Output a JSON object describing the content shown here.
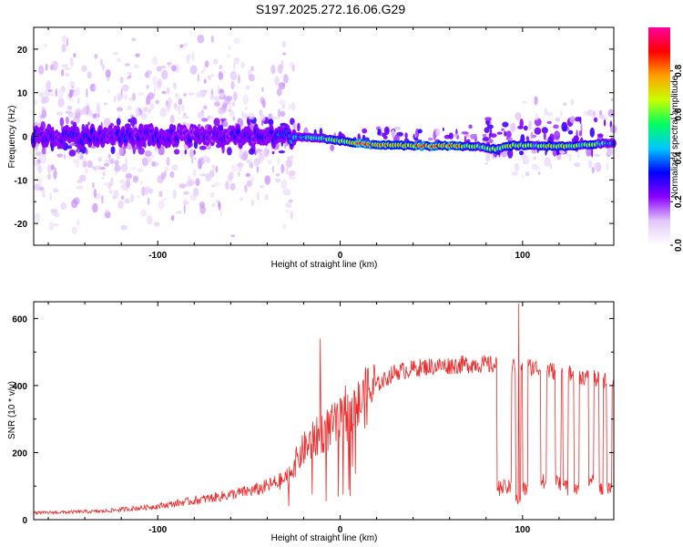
{
  "title": "S197.2025.272.16.06.G29",
  "chart_data": [
    {
      "type": "heatmap",
      "name": "spectrogram",
      "xlabel": "Height of straight line (km)",
      "ylabel": "Frequency (Hz)",
      "xlim": [
        -168,
        150
      ],
      "ylim": [
        -25,
        25
      ],
      "xticks": [
        -100,
        0,
        100
      ],
      "yticks": [
        -20,
        -10,
        0,
        10,
        20
      ],
      "colorbar": {
        "label": "Normalized spectral amplitude",
        "range": [
          0,
          1
        ],
        "ticks": [
          "0.0",
          "0.2",
          "0.4",
          "0.6",
          "0.8"
        ],
        "tick_values": [
          0,
          0.2,
          0.4,
          0.6,
          0.8
        ],
        "colors": [
          "#ffffff",
          "#e3c8f8",
          "#8a00ff",
          "#0000ff",
          "#00c8ff",
          "#00ff60",
          "#c8ff00",
          "#ffa000",
          "#ff0000",
          "#ff00a0"
        ]
      },
      "ridge": [
        {
          "x": -168,
          "f": 0.0,
          "a": 0.35
        },
        {
          "x": -120,
          "f": 0.0,
          "a": 0.35
        },
        {
          "x": -80,
          "f": 0.0,
          "a": 0.3
        },
        {
          "x": -40,
          "f": 0.0,
          "a": 0.35
        },
        {
          "x": -28,
          "f": 0.0,
          "a": 0.45
        },
        {
          "x": -15,
          "f": -0.3,
          "a": 0.6
        },
        {
          "x": 0,
          "f": -1.0,
          "a": 0.7
        },
        {
          "x": 10,
          "f": -1.7,
          "a": 0.95
        },
        {
          "x": 25,
          "f": -2.0,
          "a": 0.8
        },
        {
          "x": 40,
          "f": -2.2,
          "a": 0.9
        },
        {
          "x": 60,
          "f": -2.2,
          "a": 0.95
        },
        {
          "x": 75,
          "f": -2.3,
          "a": 0.7
        },
        {
          "x": 85,
          "f": -3.0,
          "a": 0.7
        },
        {
          "x": 95,
          "f": -2.0,
          "a": 0.75
        },
        {
          "x": 110,
          "f": -2.2,
          "a": 0.7
        },
        {
          "x": 125,
          "f": -2.3,
          "a": 0.75
        },
        {
          "x": 140,
          "f": -1.8,
          "a": 0.7
        },
        {
          "x": 150,
          "f": -1.5,
          "a": 0.5
        }
      ]
    },
    {
      "type": "line",
      "name": "snr",
      "xlabel": "Height of straight line (km)",
      "ylabel": "SNR (10 * v/v)",
      "xlim": [
        -168,
        150
      ],
      "ylim": [
        0,
        650
      ],
      "xticks": [
        -100,
        0,
        100
      ],
      "yticks": [
        0,
        200,
        400,
        600
      ],
      "color": "#ee2a2a",
      "envelope": [
        {
          "x": -168,
          "y": 20
        },
        {
          "x": -130,
          "y": 25
        },
        {
          "x": -100,
          "y": 40
        },
        {
          "x": -70,
          "y": 65
        },
        {
          "x": -45,
          "y": 90
        },
        {
          "x": -30,
          "y": 120
        },
        {
          "x": -20,
          "y": 210
        },
        {
          "x": -10,
          "y": 260
        },
        {
          "x": 0,
          "y": 290
        },
        {
          "x": 10,
          "y": 340
        },
        {
          "x": 20,
          "y": 400
        },
        {
          "x": 30,
          "y": 440
        },
        {
          "x": 45,
          "y": 455
        },
        {
          "x": 60,
          "y": 460
        },
        {
          "x": 75,
          "y": 465
        },
        {
          "x": 85,
          "y": 460
        },
        {
          "x": 92,
          "y": 455
        },
        {
          "x": 100,
          "y": 460
        },
        {
          "x": 120,
          "y": 440
        },
        {
          "x": 140,
          "y": 420
        },
        {
          "x": 150,
          "y": 410
        }
      ],
      "dropouts": [
        {
          "x0": 86,
          "x1": 94,
          "y": 95
        },
        {
          "x0": 96,
          "x1": 99,
          "y": 60
        },
        {
          "x0": 100,
          "x1": 103,
          "y": 90
        },
        {
          "x0": 110,
          "x1": 113,
          "y": 110
        },
        {
          "x0": 118,
          "x1": 121,
          "y": 110
        },
        {
          "x0": 122,
          "x1": 125,
          "y": 95
        },
        {
          "x0": 128,
          "x1": 131,
          "y": 100
        },
        {
          "x0": 136,
          "x1": 139,
          "y": 120
        },
        {
          "x0": 142,
          "x1": 144,
          "y": 90
        },
        {
          "x0": 146,
          "x1": 149,
          "y": 100
        }
      ],
      "spikes": [
        {
          "x": -11,
          "y": 540
        },
        {
          "x": 98,
          "y": 645
        },
        {
          "x": -2,
          "y": 330
        },
        {
          "x": 3,
          "y": 400
        }
      ]
    }
  ]
}
